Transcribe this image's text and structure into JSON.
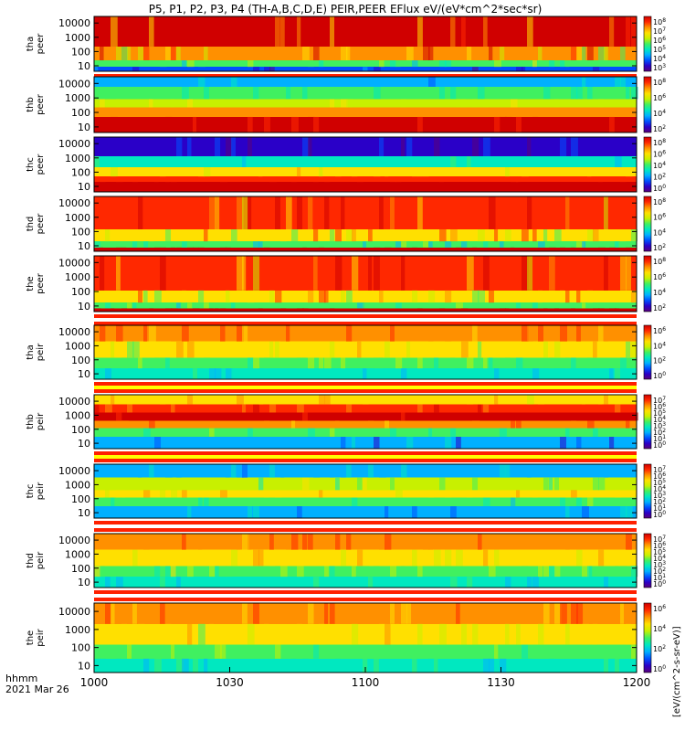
{
  "title": "P5, P1, P2, P3, P4 (TH-A,B,C,D,E) PEIR,PEER EFlux eV/(eV*cm^2*sec*sr)",
  "time_axis": {
    "ticks": [
      "1000",
      "1030",
      "1100",
      "1130",
      "1200"
    ],
    "tick_fracs": [
      0,
      0.25,
      0.5,
      0.75,
      1
    ],
    "left_label": "hhmm",
    "date_label": "2021 Mar 26"
  },
  "colorbar_title": "[eV/(cm^2-s-sr-eV)]",
  "colorscale": [
    "#5a007a",
    "#2a00c8",
    "#0050ff",
    "#00b0ff",
    "#00e8c0",
    "#40f060",
    "#c8f000",
    "#ffe000",
    "#ff9000",
    "#ff2800",
    "#d00000"
  ],
  "chart_data": [
    {
      "type": "heatmap",
      "probe": "tha",
      "species": "peer",
      "ylabels": [
        "tha",
        "peer"
      ],
      "y_scale": "log",
      "yticks": [
        "10",
        "100",
        "1000",
        "10000"
      ],
      "colorbar_ticks": [
        "10^8",
        "10^7",
        "10^6",
        "10^5",
        "10^4",
        "10^3"
      ],
      "dominant_color": "#ff3000",
      "strip": [
        "#ff2000",
        "#ffe000",
        "#00c0ff"
      ],
      "bands": [
        [
          0.0,
          0.55,
          0.95,
          0.35
        ],
        [
          0.55,
          0.8,
          0.75,
          0.3
        ],
        [
          0.8,
          0.92,
          0.5,
          0.2
        ],
        [
          0.92,
          1.0,
          0.15,
          0.15
        ]
      ]
    },
    {
      "type": "heatmap",
      "probe": "thb",
      "species": "peer",
      "ylabels": [
        "thb",
        "peer"
      ],
      "y_scale": "log",
      "yticks": [
        "10",
        "100",
        "1000",
        "10000"
      ],
      "colorbar_ticks": [
        "10^8",
        "10^6",
        "10^4",
        "10^2"
      ],
      "dominant_color": "#ff8000",
      "strip": [],
      "bands": [
        [
          0.0,
          0.18,
          0.32,
          0.08
        ],
        [
          0.18,
          0.4,
          0.45,
          0.08
        ],
        [
          0.4,
          0.55,
          0.62,
          0.06
        ],
        [
          0.55,
          0.72,
          0.8,
          0.05
        ],
        [
          0.72,
          1.0,
          0.95,
          0.04
        ]
      ]
    },
    {
      "type": "heatmap",
      "probe": "thc",
      "species": "peer",
      "ylabels": [
        "thc",
        "peer"
      ],
      "y_scale": "log",
      "yticks": [
        "10",
        "100",
        "1000",
        "10000"
      ],
      "colorbar_ticks": [
        "10^8",
        "10^6",
        "10^4",
        "10^2",
        "10^0"
      ],
      "dominant_color": "#d00000",
      "strip": [],
      "bands": [
        [
          0.0,
          0.35,
          0.12,
          0.1
        ],
        [
          0.35,
          0.55,
          0.4,
          0.08
        ],
        [
          0.55,
          0.72,
          0.7,
          0.06
        ],
        [
          0.72,
          0.82,
          0.9,
          0.05
        ],
        [
          0.82,
          1.0,
          1.0,
          0.0
        ]
      ]
    },
    {
      "type": "heatmap",
      "probe": "thd",
      "species": "peer",
      "ylabels": [
        "thd",
        "peer"
      ],
      "y_scale": "log",
      "yticks": [
        "10",
        "100",
        "1000",
        "10000"
      ],
      "colorbar_ticks": [
        "10^8",
        "10^6",
        "10^4",
        "10^2"
      ],
      "dominant_color": "#ff2000",
      "strip": [],
      "bands": [
        [
          0.0,
          0.6,
          0.92,
          0.3
        ],
        [
          0.6,
          0.82,
          0.7,
          0.25
        ],
        [
          0.82,
          0.93,
          0.45,
          0.2
        ],
        [
          0.93,
          1.0,
          0.98,
          0.0
        ]
      ]
    },
    {
      "type": "heatmap",
      "probe": "the",
      "species": "peer",
      "ylabels": [
        "the",
        "peer"
      ],
      "y_scale": "log",
      "yticks": [
        "10",
        "100",
        "1000",
        "10000"
      ],
      "colorbar_ticks": [
        "10^8",
        "10^6",
        "10^4",
        "10^2"
      ],
      "dominant_color": "#ff2000",
      "strip": [
        "#ff2000",
        "#ffffff",
        "#ff2000"
      ],
      "bands": [
        [
          0.0,
          0.62,
          0.92,
          0.3
        ],
        [
          0.62,
          0.84,
          0.7,
          0.25
        ],
        [
          0.84,
          0.94,
          0.45,
          0.2
        ],
        [
          0.94,
          1.0,
          0.98,
          0.0
        ]
      ]
    },
    {
      "type": "heatmap",
      "probe": "tha",
      "species": "peir",
      "ylabels": [
        "tha",
        "peir"
      ],
      "y_scale": "log",
      "yticks": [
        "10",
        "100",
        "1000",
        "10000"
      ],
      "colorbar_ticks": [
        "10^6",
        "10^4",
        "10^2",
        "10^0"
      ],
      "dominant_color": "#ff9000",
      "strip": [
        "#ff2000",
        "#ffff00",
        "#ff2000"
      ],
      "bands": [
        [
          0.0,
          0.3,
          0.82,
          0.12
        ],
        [
          0.3,
          0.6,
          0.68,
          0.15
        ],
        [
          0.6,
          0.8,
          0.5,
          0.15
        ],
        [
          0.8,
          1.0,
          0.38,
          0.12
        ]
      ]
    },
    {
      "type": "heatmap",
      "probe": "thb",
      "species": "peir",
      "ylabels": [
        "thb",
        "peir"
      ],
      "y_scale": "log",
      "yticks": [
        "10",
        "100",
        "1000",
        "10000"
      ],
      "colorbar_ticks": [
        "10^7",
        "10^6",
        "10^5",
        "10^4",
        "10^3",
        "10^2",
        "10^1",
        "10^0"
      ],
      "dominant_color": "#d00000",
      "strip": [
        "#ff2000",
        "#ffff00",
        "#ff2000"
      ],
      "bands": [
        [
          0.0,
          0.18,
          0.72,
          0.1
        ],
        [
          0.18,
          0.33,
          0.88,
          0.1
        ],
        [
          0.33,
          0.48,
          0.98,
          0.05
        ],
        [
          0.48,
          0.62,
          0.82,
          0.1
        ],
        [
          0.62,
          0.78,
          0.48,
          0.12
        ],
        [
          0.78,
          1.0,
          0.25,
          0.15
        ]
      ]
    },
    {
      "type": "heatmap",
      "probe": "thc",
      "species": "peir",
      "ylabels": [
        "thc",
        "peir"
      ],
      "y_scale": "log",
      "yticks": [
        "10",
        "100",
        "1000",
        "10000"
      ],
      "colorbar_ticks": [
        "10^7",
        "10^6",
        "10^5",
        "10^4",
        "10^3",
        "10^2",
        "10^1",
        "10^0"
      ],
      "dominant_color": "#ffe000",
      "strip": [
        "#ff2000",
        "#ffffff",
        "#ff2000"
      ],
      "bands": [
        [
          0.0,
          0.25,
          0.3,
          0.12
        ],
        [
          0.25,
          0.48,
          0.55,
          0.12
        ],
        [
          0.48,
          0.62,
          0.72,
          0.12
        ],
        [
          0.62,
          0.78,
          0.45,
          0.12
        ],
        [
          0.78,
          1.0,
          0.32,
          0.15
        ]
      ]
    },
    {
      "type": "heatmap",
      "probe": "thd",
      "species": "peir",
      "ylabels": [
        "thd",
        "peir"
      ],
      "y_scale": "log",
      "yticks": [
        "10",
        "100",
        "1000",
        "10000"
      ],
      "colorbar_ticks": [
        "10^7",
        "10^6",
        "10^5",
        "10^4",
        "10^3",
        "10^2",
        "10^1",
        "10^0"
      ],
      "dominant_color": "#ff9000",
      "strip": [
        "#ff2000",
        "#ffffff",
        "#ff2000"
      ],
      "bands": [
        [
          0.0,
          0.3,
          0.82,
          0.12
        ],
        [
          0.3,
          0.6,
          0.68,
          0.15
        ],
        [
          0.6,
          0.8,
          0.52,
          0.15
        ],
        [
          0.8,
          1.0,
          0.42,
          0.12
        ]
      ]
    },
    {
      "type": "heatmap",
      "probe": "the",
      "species": "peir",
      "ylabels": [
        "the",
        "peir"
      ],
      "y_scale": "log",
      "yticks": [
        "10",
        "100",
        "1000",
        "10000"
      ],
      "colorbar_ticks": [
        "10^6",
        "10^4",
        "10^2",
        "10^0"
      ],
      "dominant_color": "#ff9000",
      "strip": [],
      "bands": [
        [
          0.0,
          0.3,
          0.8,
          0.12
        ],
        [
          0.3,
          0.6,
          0.68,
          0.15
        ],
        [
          0.6,
          0.8,
          0.52,
          0.15
        ],
        [
          0.8,
          1.0,
          0.42,
          0.12
        ]
      ]
    }
  ]
}
